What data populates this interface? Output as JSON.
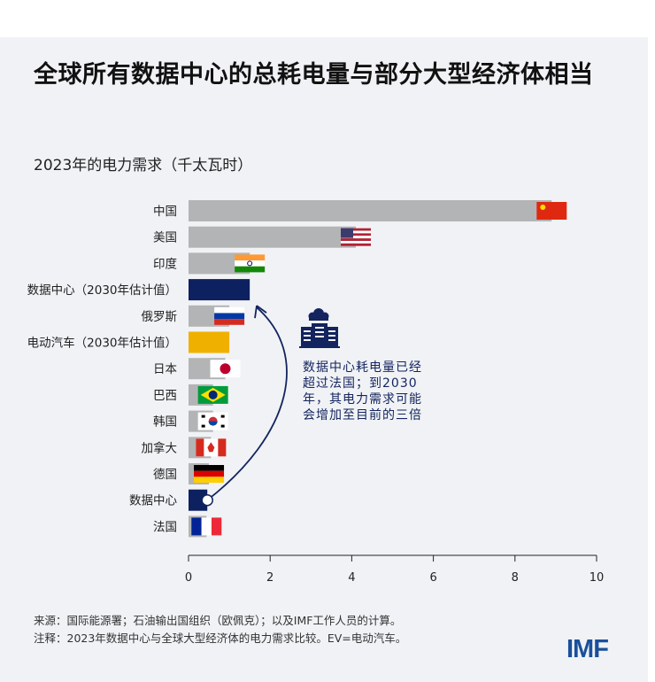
{
  "title": "全球所有数据中心的总耗电量与部分大型经济体相当",
  "chart_data": {
    "type": "bar",
    "orientation": "horizontal",
    "title": "全球所有数据中心的总耗电量与部分大型经济体相当",
    "subtitle": "2023年的电力需求（千太瓦时）",
    "categories": [
      "中国",
      "美国",
      "印度",
      "数据中心（2030年估计值）",
      "俄罗斯",
      "电动汽车（2030年估计值）",
      "日本",
      "巴西",
      "韩国",
      "加拿大",
      "德国",
      "数据中心",
      "法国"
    ],
    "values": [
      8.9,
      4.1,
      1.5,
      1.5,
      1.0,
      1.0,
      0.9,
      0.6,
      0.6,
      0.55,
      0.5,
      0.46,
      0.44
    ],
    "bar_colors": [
      "#b3b4b5",
      "#b3b4b5",
      "#b3b4b5",
      "#0d2060",
      "#b3b4b5",
      "#f0b000",
      "#b3b4b5",
      "#b3b4b5",
      "#b3b4b5",
      "#b3b4b5",
      "#b3b4b5",
      "#0d2060",
      "#b3b4b5"
    ],
    "flags": [
      "china",
      "usa",
      "india",
      null,
      "russia",
      null,
      "japan",
      "brazil",
      "korea",
      "canada",
      "germany",
      null,
      "france"
    ],
    "xlim": [
      0,
      10
    ],
    "xticks": [
      "0",
      "2",
      "4",
      "6",
      "8",
      "10"
    ],
    "grid": false
  },
  "annotation": {
    "text": "数据中心耗电量已经超过法国；到2030年，其电力需求可能会增加至目前的三倍",
    "icon": "data-center-building-icon"
  },
  "footer": {
    "source": "来源：国际能源署；石油输出国组织（欧佩克）；以及IMF工作人员的计算。",
    "note": "注释：2023年数据中心与全球大型经济体的电力需求比较。EV=电动汽车。",
    "logo": "IMF"
  }
}
